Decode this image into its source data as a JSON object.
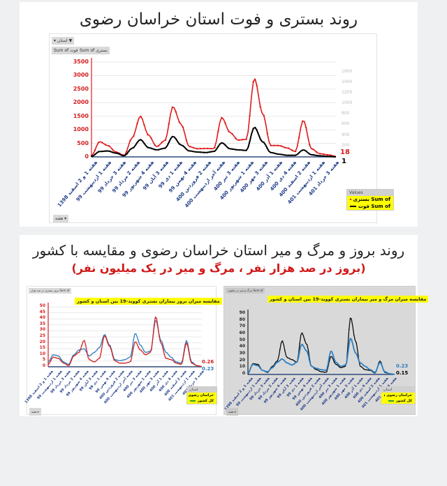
{
  "section1": {
    "title": "روند بستری و فوت استان خراسان رضوی",
    "filter_label": "استان",
    "field_buttons": [
      "Sum of فوت",
      "Sum of بستری"
    ],
    "bottom_filter": "هفته",
    "legend_header": "Values",
    "legend_items": [
      {
        "label": "Sum of بستری",
        "color": "#e01a1a"
      },
      {
        "label": "Sum of فوت",
        "color": "#000000"
      }
    ],
    "end_labels": {
      "hospitalized": "18",
      "deaths": "1"
    }
  },
  "section2": {
    "title": "روند بروز و مرگ و میر استان خراسان رضوی و مقایسه با کشور",
    "subtitle": "(بروز در صد هزار نفر ، مرگ و میر در یک میلیون نفر)",
    "left_chart": {
      "top_button": "بروز بستری در صد هزار Sum of",
      "title": "مقایسه میزان بروز بیماران بستری کووید-19 بین استان و کشور",
      "end_labels": {
        "province": "0.26",
        "country": "0.23"
      },
      "legend_header": "استان",
      "legend_items": [
        {
          "label": "خراسان رضوی",
          "color": "#d42020"
        },
        {
          "label": "کل کشور",
          "color": "#2e7fc1"
        }
      ],
      "bottom_filter": "هفته"
    },
    "right_chart": {
      "top_button": "مرگ و میر در میلیون Sum of",
      "title": "مقایسه میزان مرگ و میر بیماران بستری کووید-19 بین استان و کشور",
      "end_labels": {
        "country": "0.23",
        "province": "0.15"
      },
      "legend_header": "استان",
      "legend_items": [
        {
          "label": "خراسان رضوی",
          "color": "#000000"
        },
        {
          "label": "کل کشور",
          "color": "#2e7fc1"
        }
      ],
      "bottom_filter": "هفته"
    }
  },
  "x_labels": [
    "هفته 1 و 2 اسفند 1398",
    "هفته 1 اردیبهشت 99",
    "هفته 3 خرداد 99",
    "هفته 2 مرداد 99",
    "هفته 4 شهریور 99",
    "هفته 3 آبان 99",
    "هفته 1 دی 99",
    "هفته 4 بهمن 99",
    "هفته 2 فروردین 400",
    "هفته آخر اردیبهشت 400",
    "هفته 3 تیر 400",
    "هفته 1 شهریور 400",
    "هفته 3 مهر 400",
    "هفته 1 آذر 400",
    "هفته 4 دی 400",
    "هفته 2 اسفند 400",
    "هفته 1 اردیبهشت 401",
    "هفته 3 خرداد 401"
  ],
  "chart_data": [
    {
      "type": "line",
      "title": "روند بستری و فوت استان خراسان رضوی",
      "categories_ref": "x_labels",
      "left_ylim": [
        0,
        3500
      ],
      "left_yticks": [
        0,
        500,
        1000,
        1500,
        2000,
        2500,
        3000,
        3500
      ],
      "right_ylim": [
        0,
        1600
      ],
      "right_yticks": [
        200,
        400,
        600,
        800,
        1000,
        1200,
        1400,
        1600
      ],
      "series": [
        {
          "name": "Sum of بستری",
          "axis": "left",
          "color": "#e01a1a",
          "values": [
            50,
            560,
            420,
            180,
            60,
            700,
            1500,
            800,
            380,
            600,
            1850,
            1200,
            380,
            300,
            310,
            300,
            1450,
            900,
            620,
            650,
            2900,
            1600,
            420,
            420,
            330,
            200,
            1350,
            300,
            120,
            80,
            18
          ]
        },
        {
          "name": "Sum of فوت",
          "axis": "right",
          "color": "#000000",
          "values": [
            10,
            100,
            110,
            70,
            20,
            160,
            320,
            170,
            130,
            160,
            380,
            220,
            110,
            90,
            80,
            100,
            260,
            150,
            130,
            120,
            550,
            280,
            80,
            50,
            30,
            30,
            130,
            40,
            20,
            10,
            1
          ]
        }
      ],
      "legend_position": "right-bottom",
      "grid": true
    },
    {
      "type": "line",
      "title": "مقایسه میزان بروز بیماران بستری کووید-19 بین استان و کشور",
      "ylim": [
        0,
        50
      ],
      "yticks": [
        0,
        5,
        10,
        15,
        20,
        25,
        30,
        35,
        40,
        45,
        50
      ],
      "series": [
        {
          "name": "خراسان رضوی",
          "color": "#d42020",
          "values": [
            2,
            8,
            7,
            3,
            1,
            9,
            12,
            22,
            6,
            4,
            7,
            26,
            17,
            5,
            3,
            3,
            4,
            21,
            14,
            10,
            12,
            42,
            20,
            7,
            6,
            3,
            2,
            20,
            3,
            1,
            0.26
          ]
        },
        {
          "name": "کل کشور",
          "color": "#2e7fc1",
          "values": [
            4,
            10,
            9,
            4,
            2,
            10,
            14,
            15,
            9,
            12,
            16,
            27,
            18,
            6,
            5,
            6,
            8,
            28,
            18,
            12,
            13,
            39,
            22,
            12,
            8,
            4,
            3,
            22,
            4,
            1,
            0.23
          ]
        }
      ],
      "legend_position": "right-bottom",
      "grid": true
    },
    {
      "type": "line",
      "title": "مقایسه میزان مرگ و میر بیماران بستری کووید-19 بین استان و کشور",
      "ylim": [
        0,
        90
      ],
      "yticks": [
        0,
        10,
        20,
        30,
        40,
        50,
        60,
        70,
        80,
        90
      ],
      "series": [
        {
          "name": "خراسان رضوی",
          "color": "#000000",
          "values": [
            1,
            16,
            15,
            6,
            3,
            12,
            20,
            50,
            25,
            22,
            18,
            62,
            45,
            12,
            7,
            4,
            3,
            27,
            15,
            10,
            12,
            85,
            50,
            12,
            7,
            6,
            2,
            20,
            3,
            1,
            0.15
          ]
        },
        {
          "name": "کل کشور",
          "color": "#2e7fc1",
          "values": [
            2,
            15,
            13,
            6,
            4,
            10,
            18,
            23,
            17,
            14,
            18,
            45,
            35,
            12,
            9,
            7,
            6,
            35,
            18,
            12,
            14,
            54,
            32,
            17,
            12,
            7,
            3,
            18,
            4,
            1,
            0.23
          ]
        }
      ],
      "legend_position": "right-bottom",
      "grid": false
    }
  ]
}
